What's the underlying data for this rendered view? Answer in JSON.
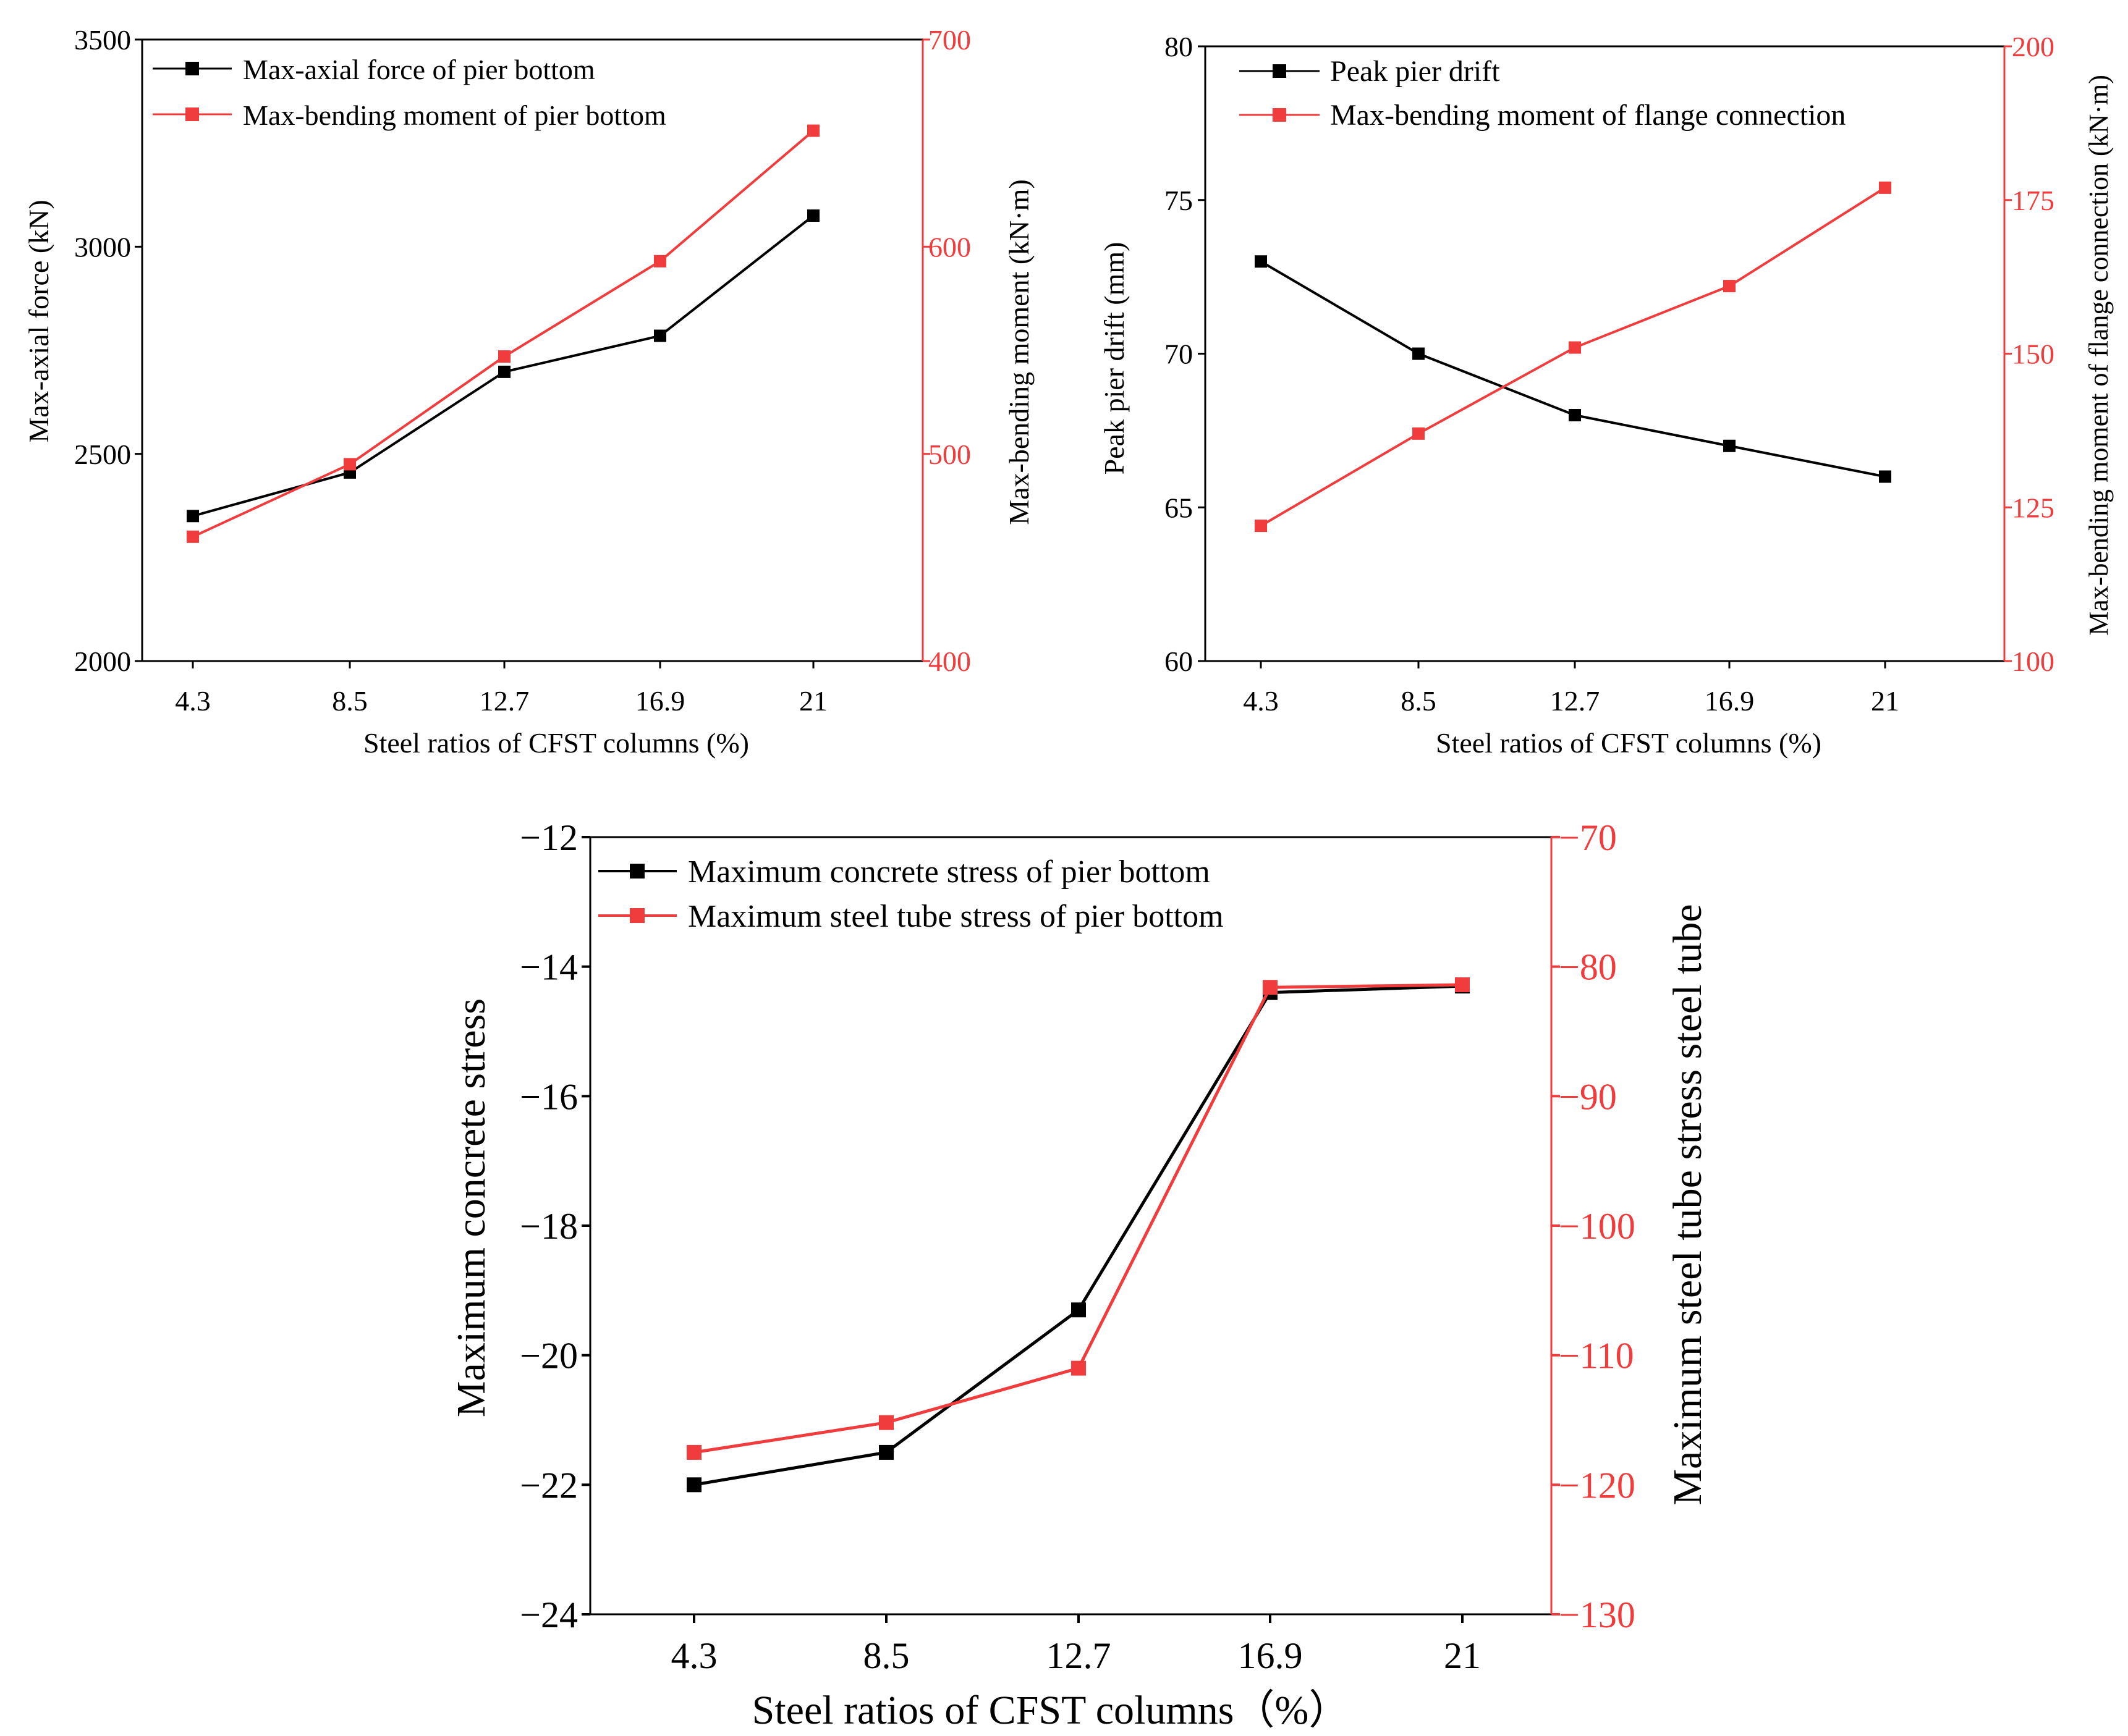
{
  "chart_data": [
    {
      "type": "line",
      "panel": "top-left",
      "categories": [
        "4.3",
        "8.5",
        "12.7",
        "16.9",
        "21"
      ],
      "xlabel": "Steel ratios of CFST columns (%)",
      "ylabel_left": "Max-axial force (kN)",
      "ylabel_right": "Max-bending moment (kN·m)",
      "ylim_left": [
        2000,
        3500
      ],
      "ylim_right": [
        400,
        700
      ],
      "yticks_left": [
        2000,
        2500,
        3000,
        3500
      ],
      "yticks_right": [
        400,
        500,
        600,
        700
      ],
      "legend_position": "top-left",
      "series": [
        {
          "name": "Max-axial force of pier bottom",
          "axis": "left",
          "color": "#000000",
          "values": [
            2350,
            2455,
            2698,
            2785,
            3075
          ]
        },
        {
          "name": "Max-bending moment of pier bottom",
          "axis": "right",
          "color": "#f03c3c",
          "values": [
            460,
            495,
            547,
            593,
            656
          ]
        }
      ]
    },
    {
      "type": "line",
      "panel": "top-right",
      "categories": [
        "4.3",
        "8.5",
        "12.7",
        "16.9",
        "21"
      ],
      "xlabel": "Steel ratios of CFST columns (%)",
      "ylabel_left": "Peak pier drift (mm)",
      "ylabel_right": "Max-bending moment of flange connection (kN·m)",
      "ylim_left": [
        60,
        80
      ],
      "ylim_right": [
        100,
        200
      ],
      "yticks_left": [
        60,
        65,
        70,
        75,
        80
      ],
      "yticks_right": [
        100,
        125,
        150,
        175,
        200
      ],
      "legend_position": "top-left",
      "series": [
        {
          "name": "Peak pier drift",
          "axis": "left",
          "color": "#000000",
          "values": [
            73,
            70,
            68,
            67,
            66
          ]
        },
        {
          "name": "Max-bending moment of flange connection",
          "axis": "right",
          "color": "#f03c3c",
          "values": [
            122,
            137,
            151,
            161,
            177
          ]
        }
      ]
    },
    {
      "type": "line",
      "panel": "bottom",
      "categories": [
        "4.3",
        "8.5",
        "12.7",
        "16.9",
        "21"
      ],
      "xlabel": "Steel ratios of CFST columns（%）",
      "ylabel_left": "Maximum concrete stress",
      "ylabel_right": "Maximum steel tube stress steel tube",
      "ylim_left": [
        -24,
        -12
      ],
      "ylim_right": [
        -130,
        -70
      ],
      "yticks_left": [
        -24,
        -22,
        -20,
        -18,
        -16,
        -14,
        -12
      ],
      "yticks_right": [
        -130,
        -120,
        -110,
        -100,
        -90,
        -80,
        -70
      ],
      "legend_position": "top-left",
      "series": [
        {
          "name": "Maximum concrete stress of pier bottom",
          "axis": "left",
          "color": "#000000",
          "values": [
            -22.0,
            -21.5,
            -19.3,
            -14.4,
            -14.3
          ]
        },
        {
          "name": "Maximum steel tube stress of pier bottom",
          "axis": "right",
          "color": "#f03c3c",
          "values": [
            -117.5,
            -115.2,
            -111.0,
            -81.6,
            -81.4
          ]
        }
      ]
    }
  ]
}
